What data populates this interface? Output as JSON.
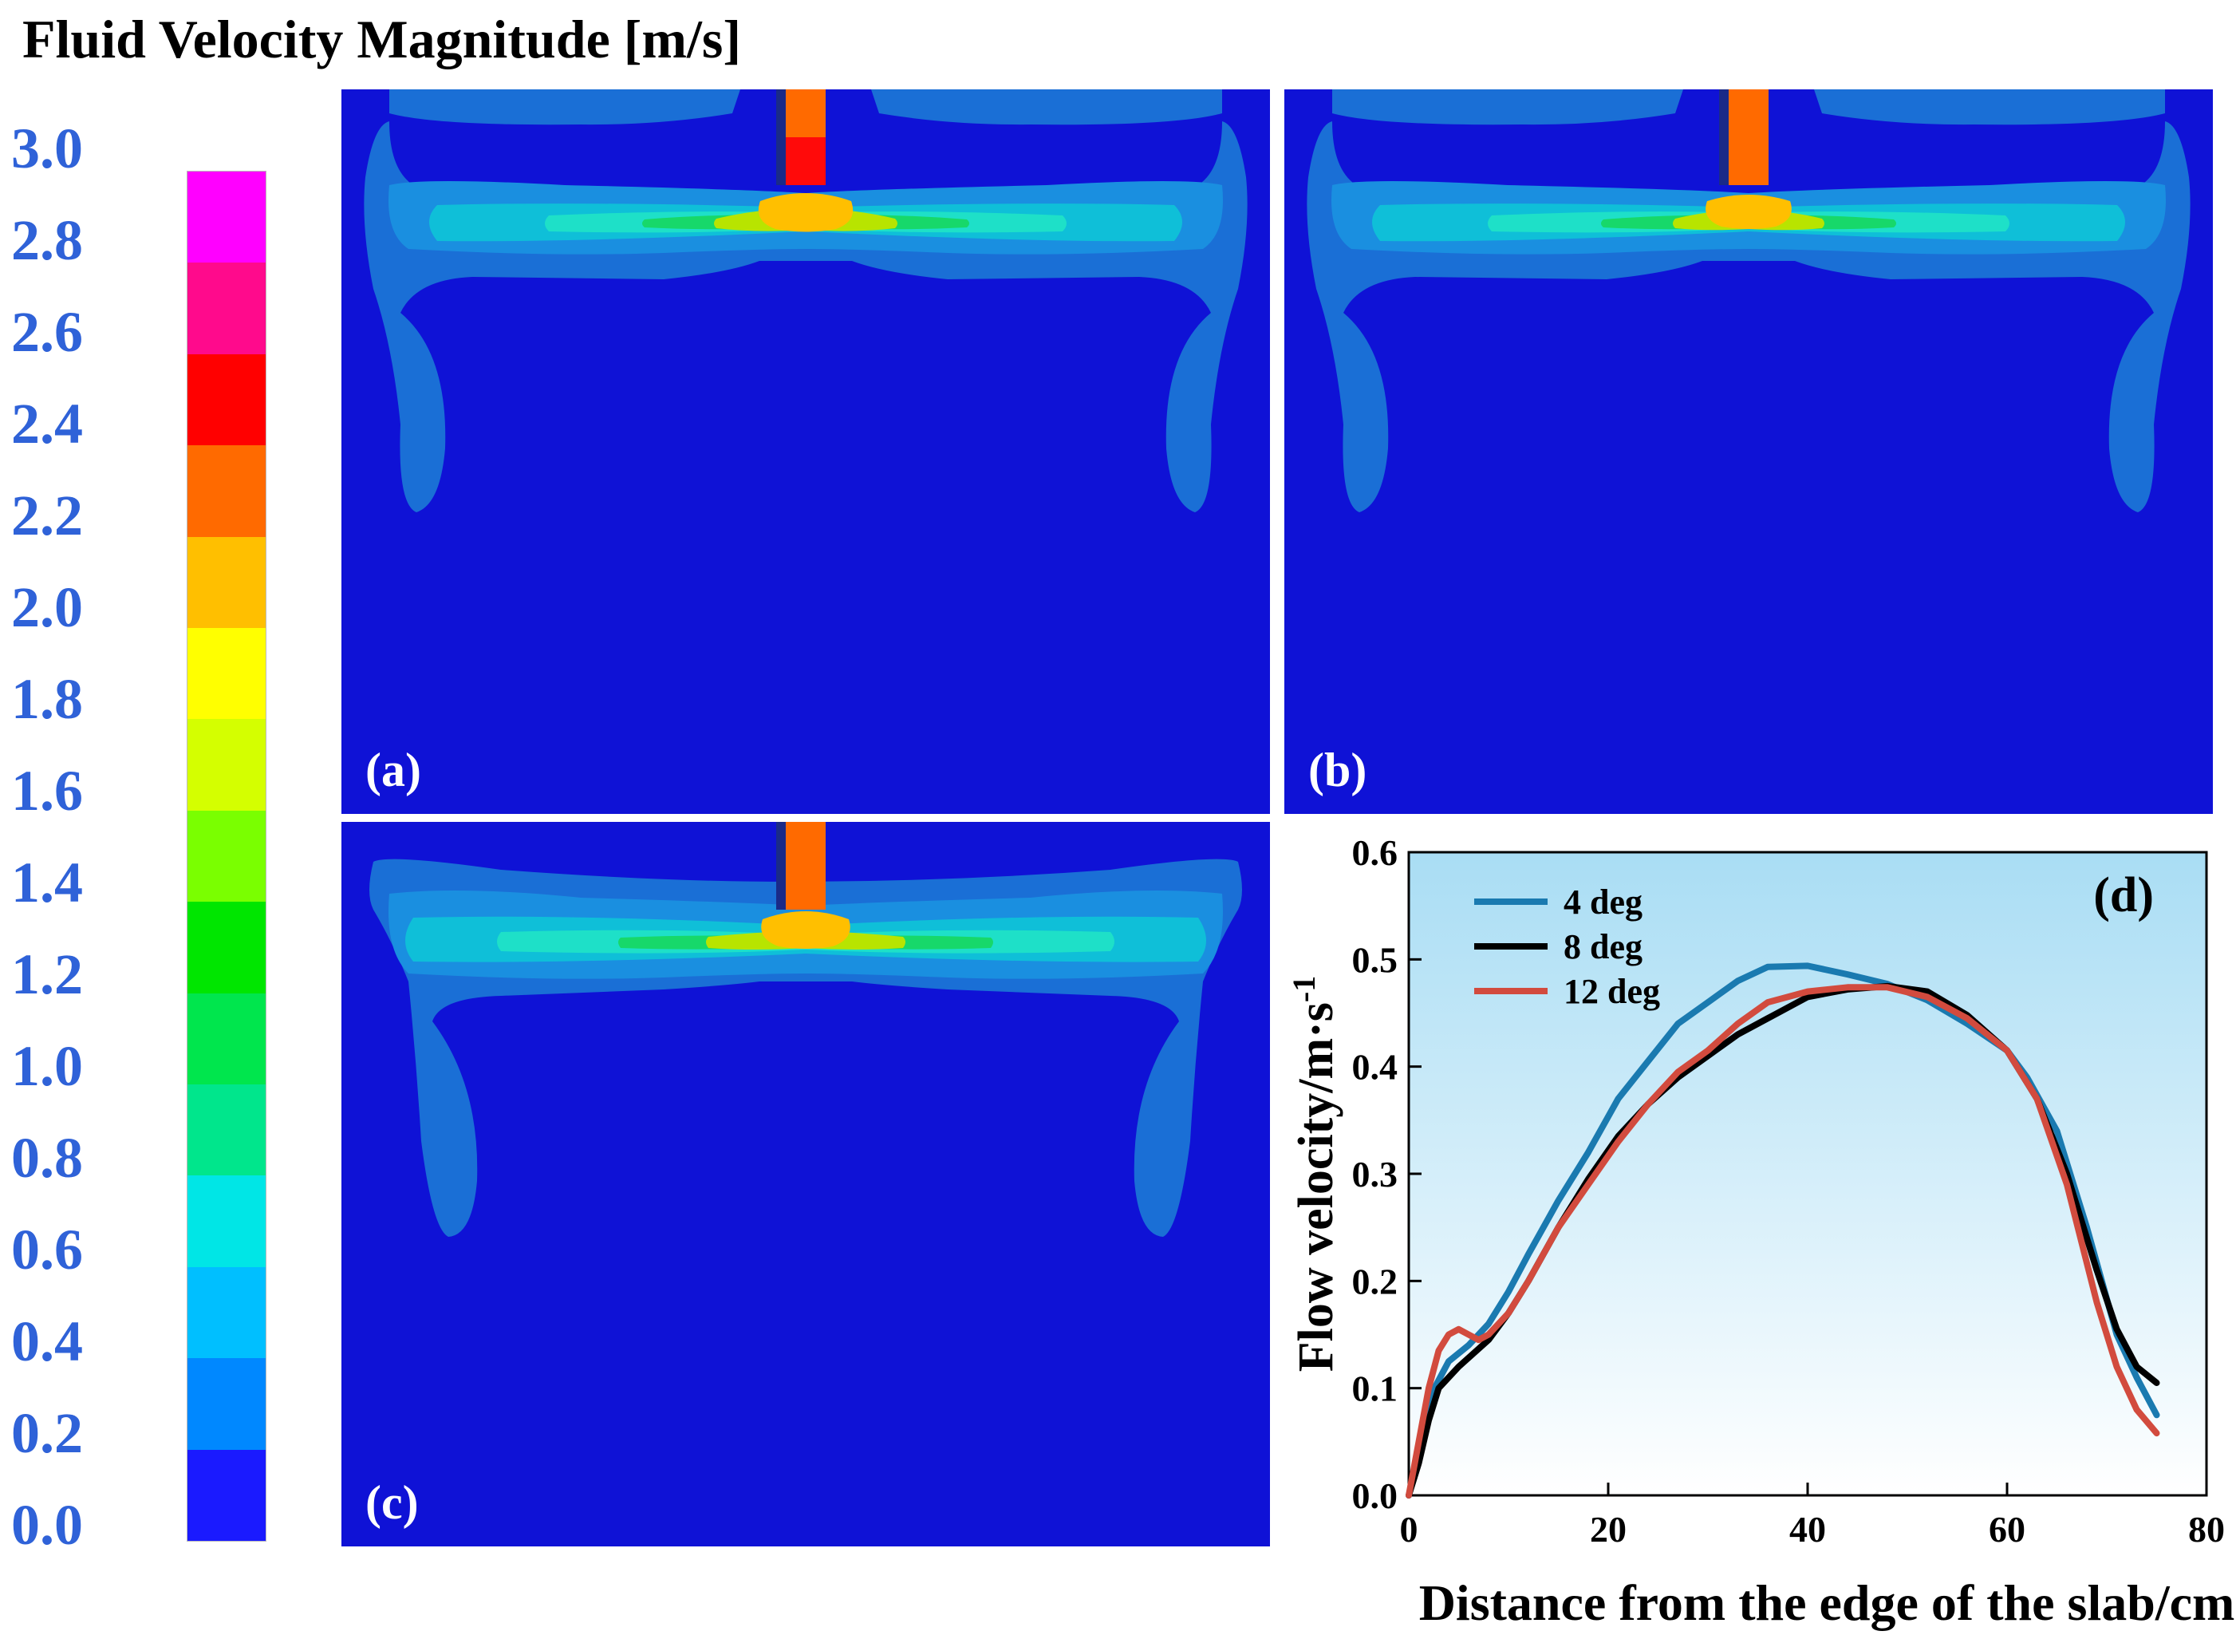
{
  "figure_title": "Fluid Velocity Magnitude [m/s]",
  "colorbar": {
    "labels": [
      "3.0",
      "2.8",
      "2.6",
      "2.4",
      "2.2",
      "2.0",
      "1.8",
      "1.6",
      "1.4",
      "1.2",
      "1.0",
      "0.8",
      "0.6",
      "0.4",
      "0.2",
      "0.0"
    ],
    "colors": [
      "#ff00ff",
      "#ff0a8c",
      "#ff0000",
      "#ff6a00",
      "#ffbf00",
      "#ffff00",
      "#d4ff00",
      "#7aff00",
      "#00e600",
      "#00e64d",
      "#00e68c",
      "#00e6e6",
      "#00bfff",
      "#0088ff",
      "#1a1aff"
    ],
    "min": 0.0,
    "max": 3.0
  },
  "panels": [
    {
      "id": "a",
      "label": "(a)"
    },
    {
      "id": "b",
      "label": "(b)"
    },
    {
      "id": "c",
      "label": "(c)"
    }
  ],
  "chart_data": {
    "type": "line",
    "panel_label": "(d)",
    "xlabel": "Distance from the edge of the slab/cm",
    "ylabel": "Flow velocity/m·s",
    "ylabel_sup": "-1",
    "xlim": [
      0,
      80
    ],
    "ylim": [
      0.0,
      0.6
    ],
    "xticks": [
      "0",
      "20",
      "40",
      "60",
      "80"
    ],
    "yticks": [
      "0.0",
      "0.1",
      "0.2",
      "0.3",
      "0.4",
      "0.5",
      "0.6"
    ],
    "legend_position": "top-left",
    "background_gradient": [
      "#a9ddf4",
      "#ffffff"
    ],
    "series": [
      {
        "name": "4 deg",
        "color": "#1a7ab0",
        "x": [
          0,
          1,
          2,
          4,
          6,
          8,
          10,
          12,
          15,
          18,
          21,
          24,
          27,
          30,
          33,
          36,
          40,
          44,
          48,
          52,
          56,
          60,
          62,
          65,
          68,
          71,
          73,
          75
        ],
        "y": [
          0.0,
          0.04,
          0.09,
          0.125,
          0.14,
          0.16,
          0.19,
          0.225,
          0.275,
          0.32,
          0.37,
          0.405,
          0.44,
          0.46,
          0.48,
          0.493,
          0.494,
          0.486,
          0.477,
          0.462,
          0.44,
          0.415,
          0.39,
          0.34,
          0.25,
          0.15,
          0.11,
          0.075
        ]
      },
      {
        "name": "8 deg",
        "color": "#000000",
        "x": [
          0,
          1,
          2,
          3,
          5,
          8,
          10,
          12,
          15,
          18,
          21,
          24,
          27,
          30,
          33,
          36,
          40,
          44,
          48,
          52,
          56,
          60,
          63,
          66,
          69,
          71,
          73,
          75
        ],
        "y": [
          0.0,
          0.03,
          0.07,
          0.1,
          0.12,
          0.145,
          0.17,
          0.2,
          0.25,
          0.295,
          0.335,
          0.365,
          0.39,
          0.41,
          0.43,
          0.445,
          0.465,
          0.472,
          0.475,
          0.47,
          0.448,
          0.415,
          0.37,
          0.3,
          0.21,
          0.155,
          0.12,
          0.105
        ]
      },
      {
        "name": "12 deg",
        "color": "#d24b3e",
        "x": [
          0,
          1,
          2,
          3,
          4,
          5,
          6,
          7,
          8,
          10,
          12,
          15,
          18,
          21,
          24,
          27,
          30,
          33,
          36,
          40,
          44,
          48,
          52,
          56,
          60,
          63,
          66,
          69,
          71,
          73,
          75
        ],
        "y": [
          0.0,
          0.05,
          0.1,
          0.135,
          0.15,
          0.155,
          0.15,
          0.145,
          0.15,
          0.17,
          0.2,
          0.25,
          0.29,
          0.33,
          0.365,
          0.395,
          0.415,
          0.44,
          0.46,
          0.47,
          0.474,
          0.474,
          0.465,
          0.445,
          0.415,
          0.37,
          0.29,
          0.18,
          0.12,
          0.08,
          0.058
        ]
      }
    ]
  }
}
